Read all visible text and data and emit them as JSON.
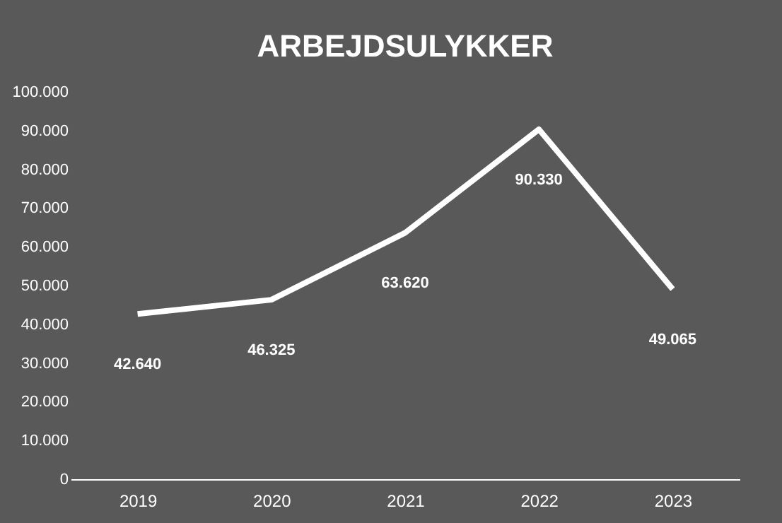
{
  "chart_data": {
    "type": "line",
    "title": "ARBEJDSULYKKER",
    "categories": [
      "2019",
      "2020",
      "2021",
      "2022",
      "2023"
    ],
    "series": [
      {
        "color": "#ffffff",
        "values": [
          42640,
          46325,
          63620,
          90330,
          49065
        ],
        "value_labels": [
          "42.640",
          "46.325",
          "63.620",
          "90.330",
          "49.065"
        ]
      }
    ],
    "ylim": [
      0,
      100000
    ],
    "yticks": [
      0,
      {
        "value": 10000,
        "label": "10.000"
      },
      {
        "value": 20000,
        "label": "20.000"
      },
      {
        "value": 30000,
        "label": "30.000"
      },
      {
        "value": 40000,
        "label": "40.000"
      },
      {
        "value": 50000,
        "label": "50.000"
      },
      {
        "value": 60000,
        "label": "60.000"
      },
      {
        "value": 70000,
        "label": "70.000"
      },
      {
        "value": 80000,
        "label": "80.000"
      },
      {
        "value": 90000,
        "label": "90.000"
      },
      {
        "value": 100000,
        "label": "100.000"
      }
    ],
    "grid": false,
    "marker": "none",
    "line_style": "solid"
  }
}
